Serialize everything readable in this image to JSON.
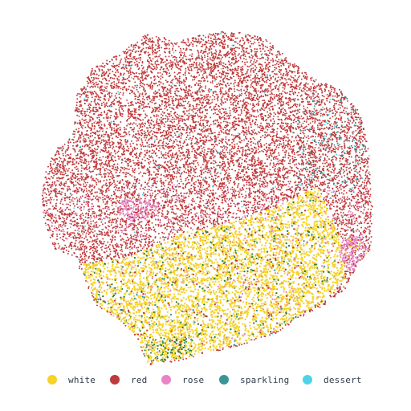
{
  "chart_data": {
    "type": "scatter",
    "title": "",
    "xlabel": "",
    "ylabel": "",
    "axes_visible": false,
    "grid": false,
    "legend_position": "bottom",
    "series": [
      {
        "name": "white",
        "color": "#f5d327",
        "approx_points": 6000
      },
      {
        "name": "red",
        "color": "#c0393b",
        "approx_points": 12000
      },
      {
        "name": "rose",
        "color": "#e884c6",
        "approx_points": 500
      },
      {
        "name": "sparkling",
        "color": "#3a9598",
        "approx_points": 300
      },
      {
        "name": "dessert",
        "color": "#4dd3e8",
        "approx_points": 60
      }
    ],
    "extra_point_colors": {
      "green": "#2e7d32",
      "orange": "#f39c3a"
    }
  },
  "legend": {
    "items": [
      {
        "label": "white",
        "color": "#f5d327"
      },
      {
        "label": "red",
        "color": "#c0393b"
      },
      {
        "label": "rose",
        "color": "#e884c6"
      },
      {
        "label": "sparkling",
        "color": "#3a9598"
      },
      {
        "label": "dessert",
        "color": "#4dd3e8"
      }
    ]
  }
}
